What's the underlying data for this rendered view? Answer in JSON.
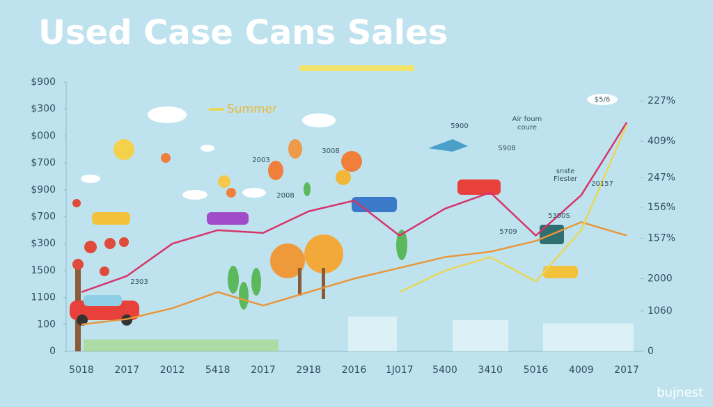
{
  "chart_data": {
    "type": "line",
    "title": "Used Case Cans Sales",
    "legend_label": "Summer",
    "watermark": "bujnest",
    "categories": [
      "5018",
      "2017",
      "2012",
      "5418",
      "2017",
      "2918",
      "2016",
      "1J017",
      "5400",
      "3410",
      "5016",
      "4009",
      "2017"
    ],
    "series": [
      {
        "name": "red",
        "color": "#d6336c",
        "values": [
          2.2,
          2.8,
          4.0,
          4.5,
          4.4,
          5.2,
          5.6,
          4.3,
          5.3,
          5.9,
          4.3,
          5.8,
          8.5
        ]
      },
      {
        "name": "orange",
        "color": "#e8963a",
        "values": [
          1.0,
          1.2,
          1.6,
          2.2,
          1.7,
          2.2,
          2.7,
          3.1,
          3.5,
          3.7,
          4.1,
          4.8,
          4.3
        ]
      },
      {
        "name": "yellow",
        "color": "#e8d65a",
        "values": [
          null,
          null,
          null,
          null,
          null,
          null,
          null,
          2.2,
          3.0,
          3.5,
          2.6,
          4.5,
          8.4
        ],
        "axis": "y2"
      }
    ],
    "ylim": [
      0,
      10
    ],
    "yticks": [
      0,
      {
        "value": 1,
        "label": "100"
      },
      {
        "value": 2,
        "label": "1100"
      },
      {
        "value": 3,
        "label": "1500"
      },
      {
        "value": 4,
        "label": "$300"
      },
      {
        "value": 5,
        "label": "$700"
      },
      {
        "value": 6,
        "label": "$900"
      },
      {
        "value": 7,
        "label": "$700"
      },
      {
        "value": 8,
        "label": "$000"
      },
      {
        "value": 9,
        "label": "$300"
      },
      {
        "value": 10,
        "label": "$900"
      }
    ],
    "y2lim": [
      0,
      10
    ],
    "y2ticks": [
      0,
      {
        "value": 1.5,
        "label": "1060"
      },
      {
        "value": 2.7,
        "label": "2000"
      },
      {
        "value": 4.2,
        "label": "157%"
      },
      {
        "value": 5.35,
        "label": "156%"
      },
      {
        "value": 6.45,
        "label": "247%"
      },
      {
        "value": 7.8,
        "label": "409%"
      },
      {
        "value": 9.3,
        "label": "227%"
      }
    ],
    "annotations": [
      "2303",
      "2003",
      "2008",
      "3008",
      "5900",
      "Air foum",
      "coure",
      "S908",
      "snste",
      "Flester",
      "5709",
      "5300S",
      "20157",
      "$5/6"
    ],
    "grid": false
  }
}
